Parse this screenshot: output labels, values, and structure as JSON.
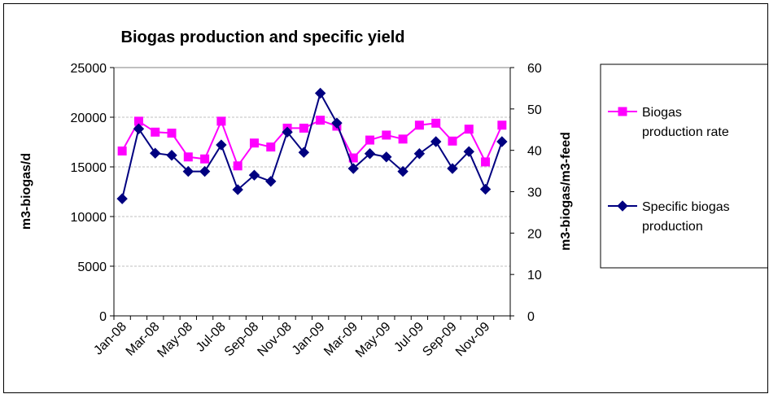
{
  "chart_data": {
    "type": "line",
    "title": "Biogas production and specific yield",
    "ylabel": "m3-biogas/d",
    "y2label": "m3-biogas/m3-feed",
    "ylim": [
      0,
      25000
    ],
    "y2lim": [
      0,
      60
    ],
    "yticks": [
      "0",
      "5000",
      "10000",
      "15000",
      "20000",
      "25000"
    ],
    "y2ticks": [
      "0",
      "10",
      "20",
      "30",
      "40",
      "50",
      "60"
    ],
    "grid": true,
    "legend_position": "right",
    "x": [
      "Jan-08",
      "Feb-08",
      "Mar-08",
      "Apr-08",
      "May-08",
      "Jun-08",
      "Jul-08",
      "Aug-08",
      "Sep-08",
      "Oct-08",
      "Nov-08",
      "Dec-08",
      "Jan-09",
      "Feb-09",
      "Mar-09",
      "Apr-09",
      "May-09",
      "Jun-09",
      "Jul-09",
      "Aug-09",
      "Sep-09",
      "Oct-09",
      "Nov-09",
      "Dec-09"
    ],
    "xtick_labels": [
      "Jan-08",
      "Mar-08",
      "May-08",
      "Jul-08",
      "Sep-08",
      "Nov-08",
      "Jan-09",
      "Mar-09",
      "May-09",
      "Jul-09",
      "Sep-09",
      "Nov-09"
    ],
    "series": [
      {
        "name": "Biogas production rate",
        "legend_lines": [
          "Biogas",
          "production rate"
        ],
        "axis": "left",
        "color": "#ff00ff",
        "marker": "square",
        "values": [
          16600,
          19600,
          18500,
          18400,
          16000,
          15800,
          19600,
          15100,
          17400,
          17000,
          18900,
          18900,
          19700,
          19100,
          15900,
          17700,
          18200,
          17800,
          19200,
          19400,
          17600,
          18800,
          15500,
          19200
        ]
      },
      {
        "name": "Specific biogas production",
        "legend_lines": [
          "Specific biogas",
          "production"
        ],
        "axis": "right",
        "color": "#000080",
        "marker": "diamond",
        "values": [
          28.3,
          45.2,
          39.3,
          38.8,
          34.9,
          34.9,
          41.3,
          30.5,
          34.0,
          32.5,
          44.4,
          39.5,
          53.8,
          46.6,
          35.6,
          39.2,
          38.4,
          34.9,
          39.2,
          42.1,
          35.6,
          39.7,
          30.6,
          42.1
        ]
      }
    ]
  }
}
